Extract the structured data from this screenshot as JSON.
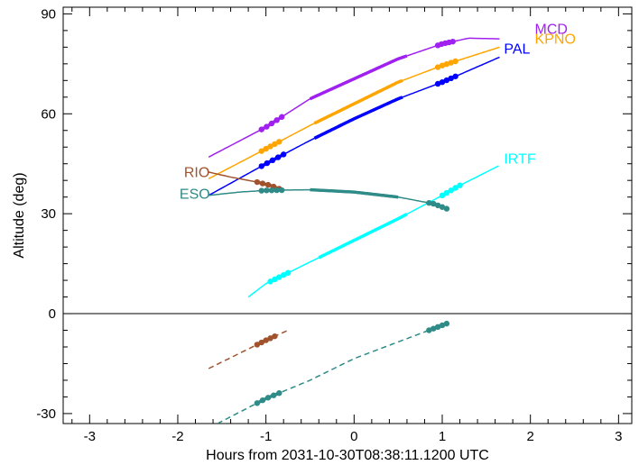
{
  "chart_data": {
    "type": "line",
    "xlabel": "Hours from 2031-10-30T08:38:11.1200 UTC",
    "ylabel": "Altitude (deg)",
    "xlim": [
      -3.3,
      3.15
    ],
    "ylim": [
      -33,
      92
    ],
    "xticks": [
      -3,
      -2,
      -1,
      0,
      1,
      2,
      3
    ],
    "yticks": [
      -30,
      0,
      30,
      60,
      90
    ],
    "xtick_labels": [
      "-3",
      "-2",
      "-1",
      "0",
      "1",
      "2",
      "3"
    ],
    "ytick_labels": [
      "-30",
      "0",
      "30",
      "60",
      "90"
    ],
    "zero_line": 0,
    "series": [
      {
        "name": "MCD",
        "color": "#a020f0",
        "x": [
          -1.65,
          -1.0,
          -0.5,
          0.0,
          0.5,
          1.0,
          1.3,
          1.65
        ],
        "y": [
          47,
          56,
          64.5,
          70.5,
          76.5,
          81,
          82.7,
          82.5
        ],
        "bold_ranges": [
          [
            -1.05,
            -0.82
          ],
          [
            -0.5,
            0.6
          ],
          [
            0.95,
            1.12
          ]
        ],
        "label_at": [
          2.05,
          84
        ]
      },
      {
        "name": "KPNO",
        "color": "#ffa500",
        "x": [
          -1.65,
          -1.0,
          -0.5,
          0.0,
          0.5,
          1.0,
          1.65
        ],
        "y": [
          40.5,
          49.5,
          56.5,
          63,
          69.5,
          74.5,
          80
        ],
        "bold_ranges": [
          [
            -1.05,
            -0.85
          ],
          [
            -0.45,
            0.55
          ],
          [
            0.95,
            1.15
          ]
        ],
        "label_at": [
          2.05,
          81
        ]
      },
      {
        "name": "PAL",
        "color": "#0000ff",
        "x": [
          -1.65,
          -1.0,
          -0.5,
          0.0,
          0.5,
          1.0,
          1.65
        ],
        "y": [
          35.5,
          45,
          52,
          58.5,
          64.5,
          69.5,
          77
        ],
        "bold_ranges": [
          [
            -1.05,
            -0.8
          ],
          [
            -0.45,
            0.55
          ],
          [
            0.95,
            1.15
          ]
        ],
        "label_at": [
          1.7,
          78
        ]
      },
      {
        "name": "IRTF",
        "color": "#00ffff",
        "x": [
          -1.2,
          -1.0,
          -0.5,
          0.0,
          0.5,
          1.0,
          1.2,
          1.65
        ],
        "y": [
          5,
          9,
          15.5,
          22,
          28.5,
          35.5,
          38.5,
          44.5
        ],
        "bold_ranges": [
          [
            -0.95,
            -0.75
          ],
          [
            -0.4,
            0.6
          ],
          [
            1.0,
            1.2
          ]
        ],
        "label_at": [
          1.7,
          45
        ]
      },
      {
        "name": "RIO",
        "color": "#a0522d",
        "x": [
          -1.65,
          -1.4,
          -1.1,
          -0.95,
          -0.85
        ],
        "y": [
          42.5,
          41,
          39.5,
          38.5,
          37.5
        ],
        "bold_ranges": [
          [
            -1.1,
            -0.85
          ]
        ],
        "label_at": [
          -1.93,
          41
        ]
      },
      {
        "name": "ESO",
        "color": "#2e8b87",
        "x": [
          -1.65,
          -1.3,
          -1.0,
          -0.5,
          0.0,
          0.5,
          0.9,
          1.05
        ],
        "y": [
          35.5,
          36.5,
          37,
          37.2,
          36.5,
          35,
          33,
          31.5
        ],
        "bold_ranges": [
          [
            -1.05,
            -0.82
          ],
          [
            -0.5,
            0.5
          ],
          [
            0.85,
            1.05
          ]
        ],
        "label_at": [
          -1.98,
          34.5
        ]
      }
    ],
    "below_horizon": [
      {
        "name": "RIO",
        "color": "#a0522d",
        "x": [
          -1.65,
          -1.0,
          -0.75
        ],
        "y": [
          -16.5,
          -8,
          -5
        ],
        "bold_ranges": [
          [
            -1.1,
            -0.9
          ]
        ]
      },
      {
        "name": "ESO",
        "color": "#2e8b87",
        "x": [
          -1.55,
          -1.0,
          -0.5,
          0.0,
          0.5,
          1.05
        ],
        "y": [
          -33,
          -25.5,
          -20,
          -13.5,
          -8.5,
          -3
        ],
        "bold_ranges": [
          [
            -1.1,
            -0.85
          ],
          [
            0.85,
            1.05
          ]
        ]
      }
    ]
  }
}
